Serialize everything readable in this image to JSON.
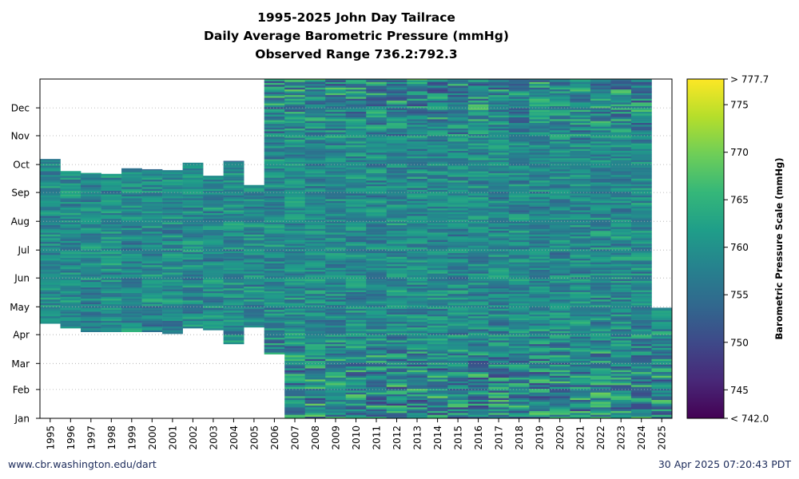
{
  "chart_data": {
    "type": "heatmap",
    "title": "1995-2025 John Day Tailrace",
    "subtitle": "Daily Average Barometric Pressure (mmHg)",
    "range_label": "Observed Range 736.2:792.3",
    "x_categories": [
      "1995",
      "1996",
      "1997",
      "1998",
      "1999",
      "2000",
      "2001",
      "2002",
      "2003",
      "2004",
      "2005",
      "2006",
      "2007",
      "2008",
      "2009",
      "2010",
      "2011",
      "2012",
      "2013",
      "2014",
      "2015",
      "2016",
      "2017",
      "2018",
      "2019",
      "2020",
      "2021",
      "2022",
      "2023",
      "2024",
      "2025"
    ],
    "y_tick_labels": [
      "Jan",
      "Feb",
      "Mar",
      "Apr",
      "May",
      "Jun",
      "Jul",
      "Aug",
      "Sep",
      "Oct",
      "Nov",
      "Dec"
    ],
    "y_tick_days": [
      1,
      32,
      60,
      91,
      121,
      152,
      182,
      213,
      244,
      274,
      305,
      335
    ],
    "y_range_days": [
      1,
      366
    ],
    "data_coverage": [
      {
        "year": "1995",
        "start_day": 103,
        "end_day": 280
      },
      {
        "year": "1996",
        "start_day": 98,
        "end_day": 267
      },
      {
        "year": "1997",
        "start_day": 94,
        "end_day": 265
      },
      {
        "year": "1998",
        "start_day": 94,
        "end_day": 264
      },
      {
        "year": "1999",
        "start_day": 94,
        "end_day": 270
      },
      {
        "year": "2000",
        "start_day": 94,
        "end_day": 269
      },
      {
        "year": "2001",
        "start_day": 92,
        "end_day": 268
      },
      {
        "year": "2002",
        "start_day": 98,
        "end_day": 276
      },
      {
        "year": "2003",
        "start_day": 96,
        "end_day": 262
      },
      {
        "year": "2004",
        "start_day": 81,
        "end_day": 278
      },
      {
        "year": "2005",
        "start_day": 99,
        "end_day": 252
      },
      {
        "year": "2006",
        "start_day": 70,
        "end_day": 366
      },
      {
        "year": "2007",
        "start_day": 1,
        "end_day": 366
      },
      {
        "year": "2008",
        "start_day": 1,
        "end_day": 366
      },
      {
        "year": "2009",
        "start_day": 1,
        "end_day": 366
      },
      {
        "year": "2010",
        "start_day": 1,
        "end_day": 366
      },
      {
        "year": "2011",
        "start_day": 1,
        "end_day": 366
      },
      {
        "year": "2012",
        "start_day": 1,
        "end_day": 366
      },
      {
        "year": "2013",
        "start_day": 1,
        "end_day": 366
      },
      {
        "year": "2014",
        "start_day": 1,
        "end_day": 366
      },
      {
        "year": "2015",
        "start_day": 1,
        "end_day": 366
      },
      {
        "year": "2016",
        "start_day": 1,
        "end_day": 366
      },
      {
        "year": "2017",
        "start_day": 1,
        "end_day": 366
      },
      {
        "year": "2018",
        "start_day": 1,
        "end_day": 366
      },
      {
        "year": "2019",
        "start_day": 1,
        "end_day": 366
      },
      {
        "year": "2020",
        "start_day": 1,
        "end_day": 366
      },
      {
        "year": "2021",
        "start_day": 1,
        "end_day": 366
      },
      {
        "year": "2022",
        "start_day": 1,
        "end_day": 366
      },
      {
        "year": "2023",
        "start_day": 1,
        "end_day": 366
      },
      {
        "year": "2024",
        "start_day": 1,
        "end_day": 366
      },
      {
        "year": "2025",
        "start_day": 1,
        "end_day": 120
      }
    ],
    "colorbar": {
      "label": "Barometric Pressure Scale (mmHg)",
      "min": 742.0,
      "max": 777.7,
      "min_label": "< 742.0",
      "max_label": "> 777.7",
      "tick_values": [
        745,
        750,
        755,
        760,
        765,
        770,
        775
      ],
      "tick_labels": [
        "745",
        "750",
        "755",
        "760",
        "765",
        "770",
        "775"
      ],
      "colormap": "viridis",
      "colors": [
        "#440154",
        "#482878",
        "#3e4989",
        "#31688e",
        "#26828e",
        "#1f9e89",
        "#35b779",
        "#6ece58",
        "#b5de2b",
        "#fde725"
      ]
    },
    "grid": "dotted horizontal at month ticks"
  },
  "footer": {
    "left": "www.cbr.washington.edu/dart",
    "right": "30 Apr 2025 07:20:43 PDT"
  }
}
